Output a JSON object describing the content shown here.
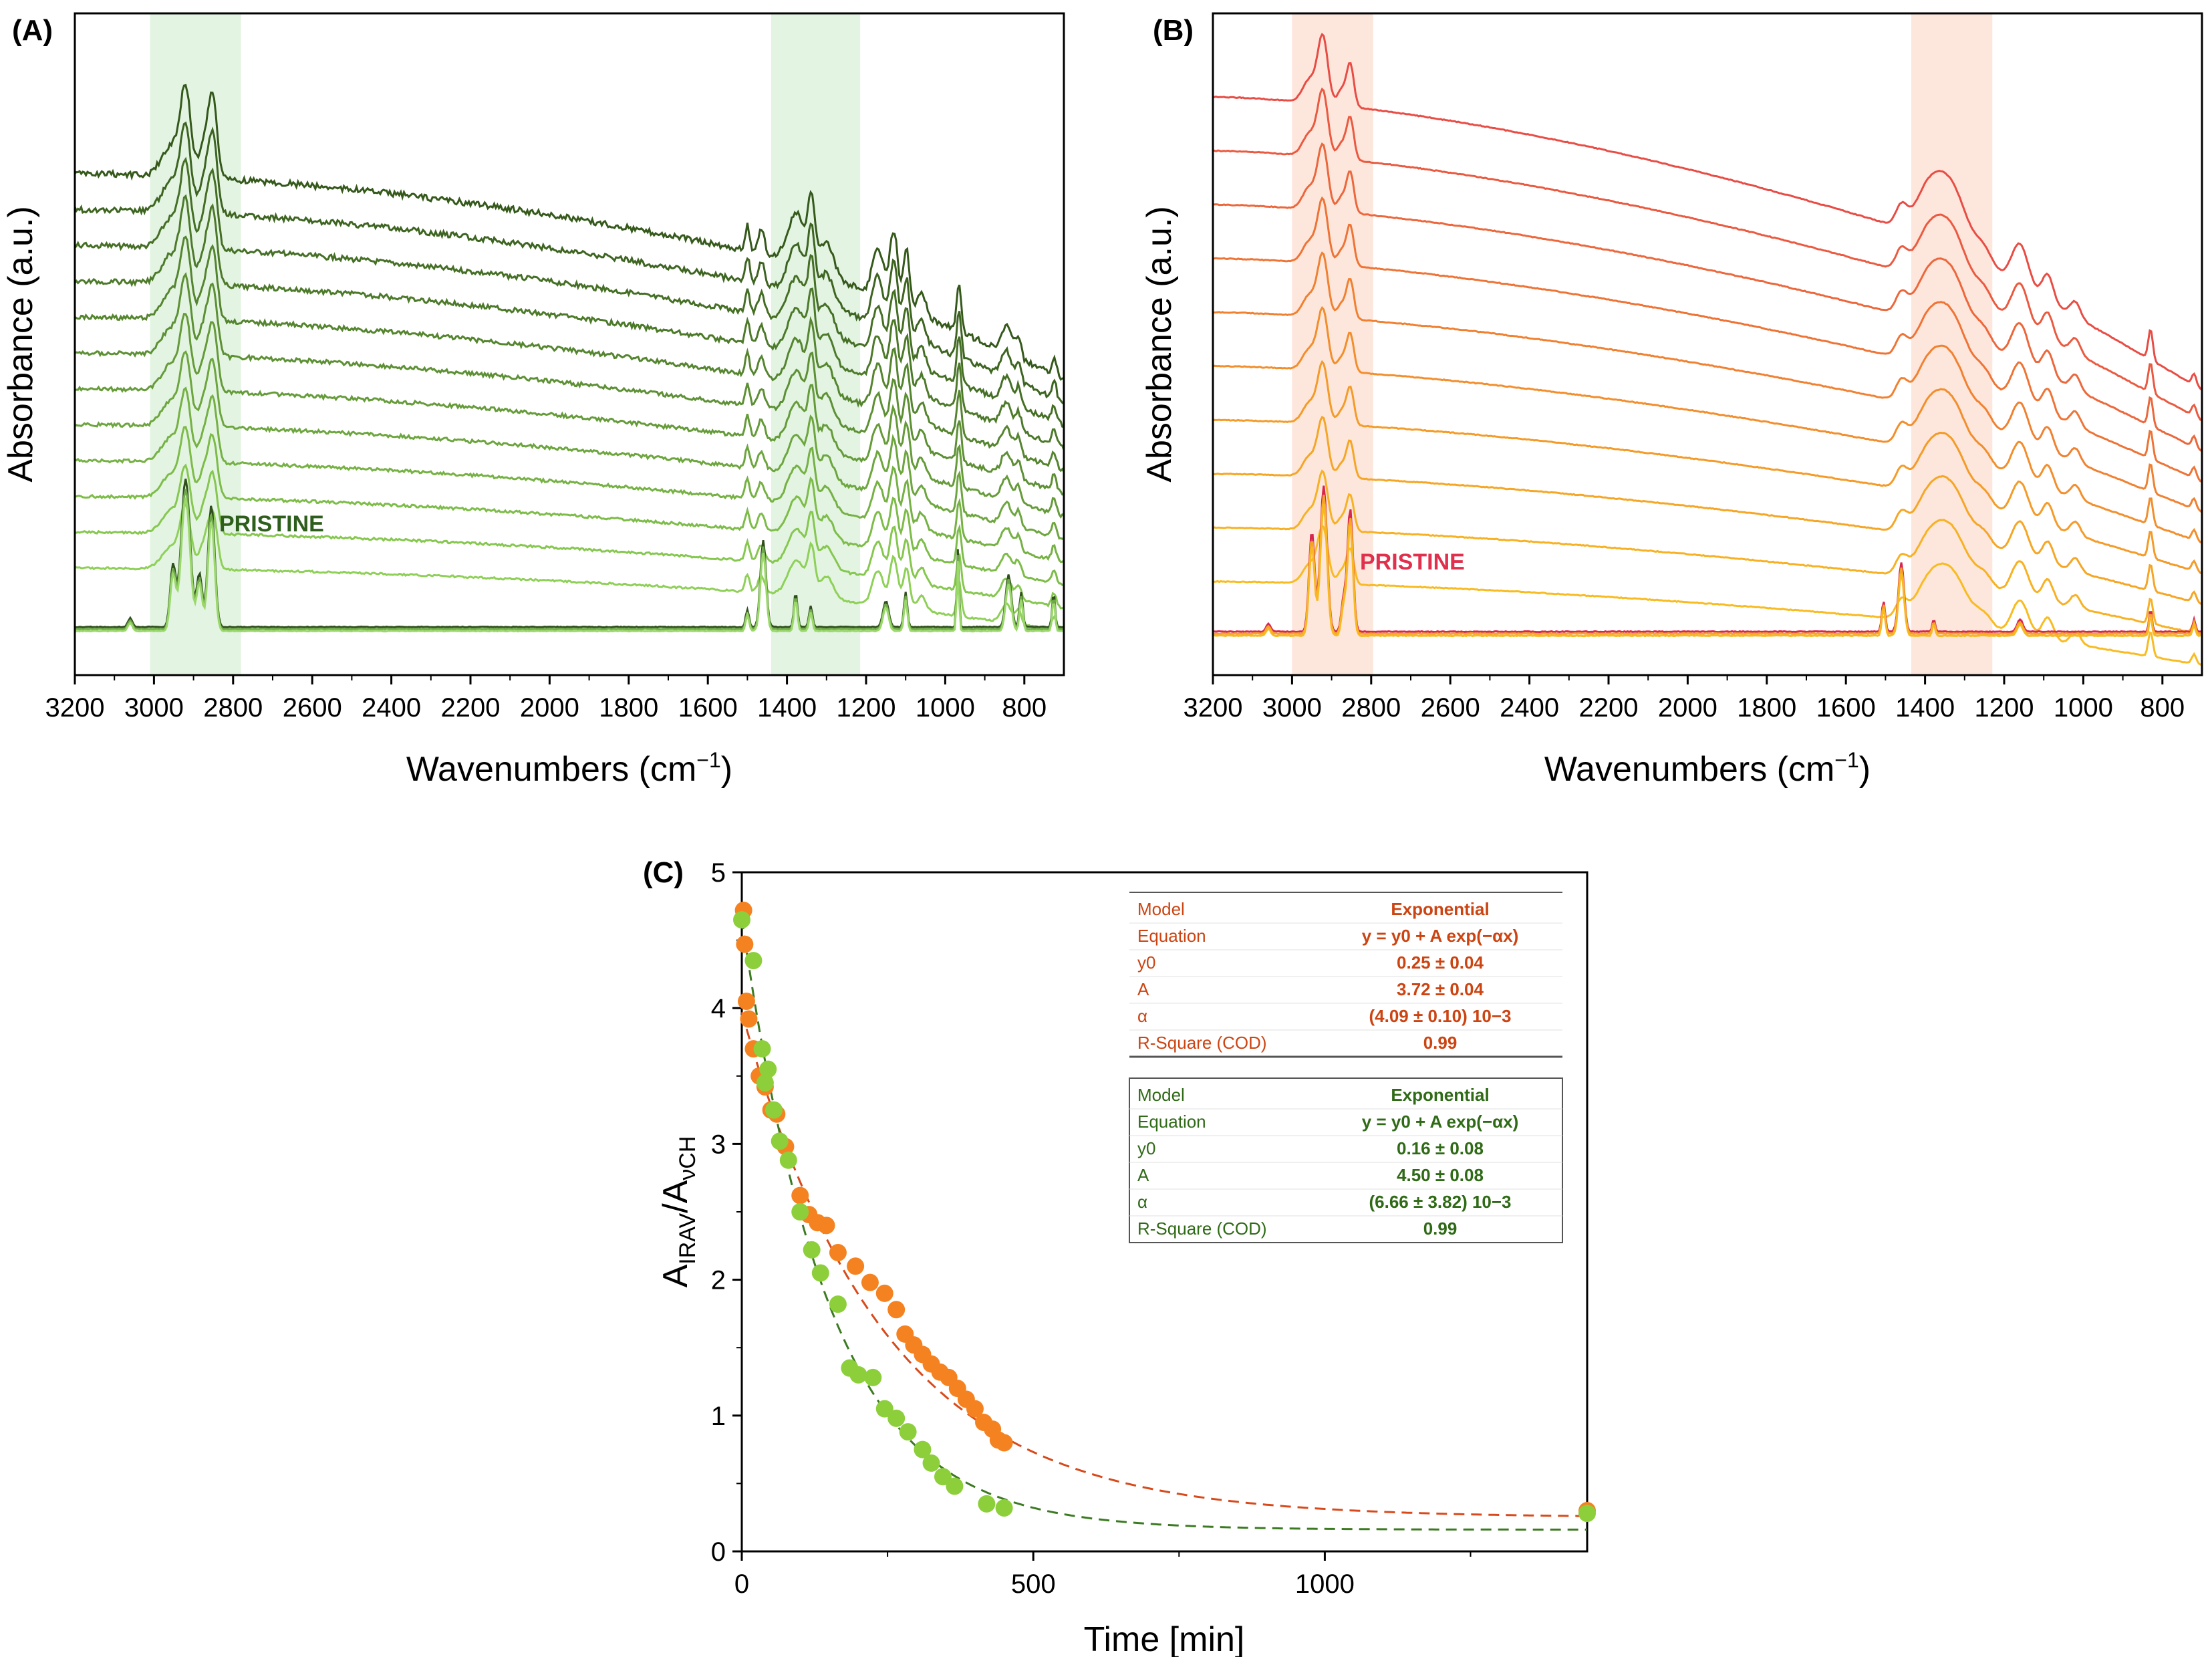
{
  "chart_data": [
    {
      "panel": "(A)",
      "type": "line",
      "xlabel_main": "Wavenumbers (cm",
      "xlabel_sup": "−1",
      "xlabel_close": ")",
      "ylabel": "Absorbance (a.u.)",
      "xlim": [
        3200,
        700
      ],
      "xticks": [
        3200,
        3000,
        2800,
        2600,
        2400,
        2200,
        2000,
        1800,
        1600,
        1400,
        1200,
        1000,
        800
      ],
      "highlight_bands": [
        [
          3010,
          2780
        ],
        [
          1440,
          1215
        ]
      ],
      "band_color": "#e3f4e3",
      "colors": [
        "#35591b",
        "#3d6420",
        "#456f25",
        "#4d7a2a",
        "#55852f",
        "#5d9034",
        "#659b39",
        "#6da63e",
        "#75b143",
        "#7dbc48",
        "#86c74f",
        "#8fd058"
      ],
      "pristine_colors": [
        "#2f4f1c",
        "#6fa84a",
        "#9ad86a"
      ],
      "annotation": "PRISTINE",
      "annotation_color": "#2e5e1c",
      "num_series": 12
    },
    {
      "panel": "(B)",
      "type": "line",
      "xlabel_main": "Wavenumbers (cm",
      "xlabel_sup": "−1",
      "xlabel_close": ")",
      "ylabel": "Absorbance (a.u.)",
      "xlim": [
        3200,
        700
      ],
      "xticks": [
        3200,
        3000,
        2800,
        2600,
        2400,
        2200,
        2000,
        1800,
        1600,
        1400,
        1200,
        1000,
        800
      ],
      "highlight_bands": [
        [
          3000,
          2795
        ],
        [
          1435,
          1230
        ]
      ],
      "band_color": "#fde6dc",
      "colors": [
        "#e84d45",
        "#ea5a40",
        "#ec673b",
        "#ee7436",
        "#f08131",
        "#f28e2c",
        "#f49b28",
        "#f5a625",
        "#f7b123",
        "#f8bb21"
      ],
      "pristine_colors": [
        "#d7264f",
        "#f5a425",
        "#f8b820"
      ],
      "annotation": "PRISTINE",
      "annotation_color": "#e0304d",
      "num_series": 10
    },
    {
      "panel": "(C)",
      "type": "scatter",
      "xlabel": "Time [min]",
      "ylabel_main": "A",
      "ylabel_sub1": "IRAV",
      "ylabel_mid": "/A",
      "ylabel_sub2": "νCH",
      "xlim": [
        0,
        1450
      ],
      "ylim": [
        0,
        5
      ],
      "xticks": [
        0,
        500,
        1000
      ],
      "yticks": [
        0,
        1,
        2,
        3,
        4,
        5
      ],
      "series": [
        {
          "name": "orange",
          "color": "#f58220",
          "fit_color": "#d84a1b",
          "fit": {
            "y0": 0.25,
            "A": 3.72,
            "alpha": 0.00409
          },
          "points": [
            [
              3,
              4.72
            ],
            [
              5,
              4.47
            ],
            [
              8,
              4.05
            ],
            [
              12,
              3.92
            ],
            [
              20,
              3.7
            ],
            [
              30,
              3.5
            ],
            [
              40,
              3.42
            ],
            [
              50,
              3.25
            ],
            [
              60,
              3.22
            ],
            [
              75,
              2.98
            ],
            [
              100,
              2.62
            ],
            [
              115,
              2.48
            ],
            [
              130,
              2.42
            ],
            [
              145,
              2.4
            ],
            [
              165,
              2.2
            ],
            [
              195,
              2.1
            ],
            [
              220,
              1.98
            ],
            [
              245,
              1.9
            ],
            [
              265,
              1.78
            ],
            [
              280,
              1.6
            ],
            [
              295,
              1.52
            ],
            [
              310,
              1.45
            ],
            [
              325,
              1.38
            ],
            [
              340,
              1.32
            ],
            [
              355,
              1.28
            ],
            [
              370,
              1.2
            ],
            [
              385,
              1.12
            ],
            [
              400,
              1.05
            ],
            [
              415,
              0.95
            ],
            [
              430,
              0.9
            ],
            [
              440,
              0.82
            ],
            [
              450,
              0.8
            ],
            [
              1450,
              0.3
            ]
          ]
        },
        {
          "name": "green",
          "color": "#8ccf3a",
          "fit_color": "#3c7a22",
          "fit": {
            "y0": 0.16,
            "A": 4.5,
            "alpha": 0.00666
          },
          "points": [
            [
              0,
              4.65
            ],
            [
              20,
              4.35
            ],
            [
              35,
              3.7
            ],
            [
              40,
              3.45
            ],
            [
              45,
              3.55
            ],
            [
              55,
              3.25
            ],
            [
              65,
              3.02
            ],
            [
              80,
              2.88
            ],
            [
              100,
              2.5
            ],
            [
              120,
              2.22
            ],
            [
              135,
              2.05
            ],
            [
              165,
              1.82
            ],
            [
              185,
              1.35
            ],
            [
              200,
              1.3
            ],
            [
              225,
              1.28
            ],
            [
              245,
              1.05
            ],
            [
              265,
              0.98
            ],
            [
              285,
              0.88
            ],
            [
              310,
              0.75
            ],
            [
              325,
              0.65
            ],
            [
              345,
              0.55
            ],
            [
              365,
              0.48
            ],
            [
              420,
              0.35
            ],
            [
              450,
              0.32
            ],
            [
              1450,
              0.28
            ]
          ]
        }
      ],
      "tables": [
        {
          "color": "#cc4412",
          "rows": [
            [
              "Model",
              "Exponential"
            ],
            [
              "Equation",
              "y = y0 + A exp(−αx)"
            ],
            [
              "y0",
              "0.25 ± 0.04"
            ],
            [
              "A",
              "3.72 ± 0.04"
            ],
            [
              "α",
              "(4.09 ± 0.10) 10−3"
            ],
            [
              "R-Square (COD)",
              "0.99"
            ]
          ]
        },
        {
          "color": "#2f6a16",
          "rows": [
            [
              "Model",
              "Exponential"
            ],
            [
              "Equation",
              "y = y0 + A exp(−αx)"
            ],
            [
              "y0",
              "0.16 ± 0.08"
            ],
            [
              "A",
              "4.50 ± 0.08"
            ],
            [
              "α",
              "(6.66 ± 3.82) 10−3"
            ],
            [
              "R-Square (COD)",
              "0.99"
            ]
          ]
        }
      ]
    }
  ]
}
